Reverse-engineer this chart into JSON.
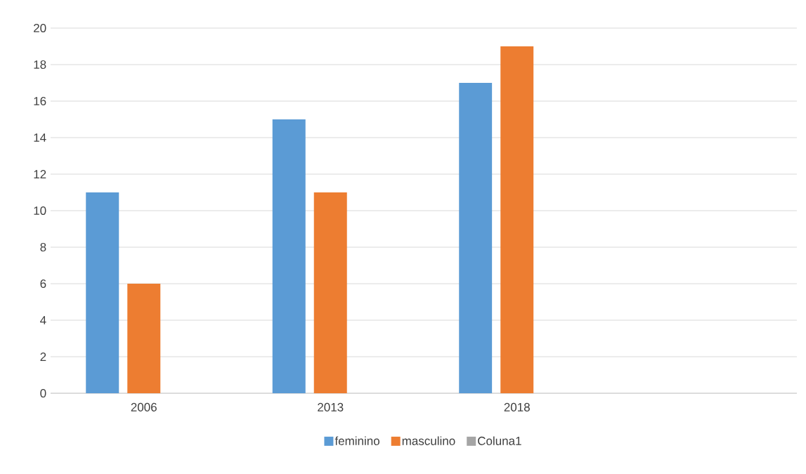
{
  "chart_data": {
    "type": "bar",
    "categories": [
      "2006",
      "2013",
      "2018",
      null
    ],
    "series": [
      {
        "name": "feminino",
        "color": "#5b9bd5",
        "values": [
          11,
          15,
          17,
          null
        ]
      },
      {
        "name": "masculino",
        "color": "#ed7d31",
        "values": [
          6,
          11,
          19,
          null
        ]
      },
      {
        "name": "Coluna1",
        "color": "#a5a5a5",
        "values": [
          null,
          null,
          null,
          null
        ]
      }
    ],
    "ylim": [
      0,
      20
    ],
    "yticks": [
      0,
      2,
      4,
      6,
      8,
      10,
      12,
      14,
      16,
      18,
      20
    ],
    "grid": "y",
    "legend": "bottom"
  }
}
